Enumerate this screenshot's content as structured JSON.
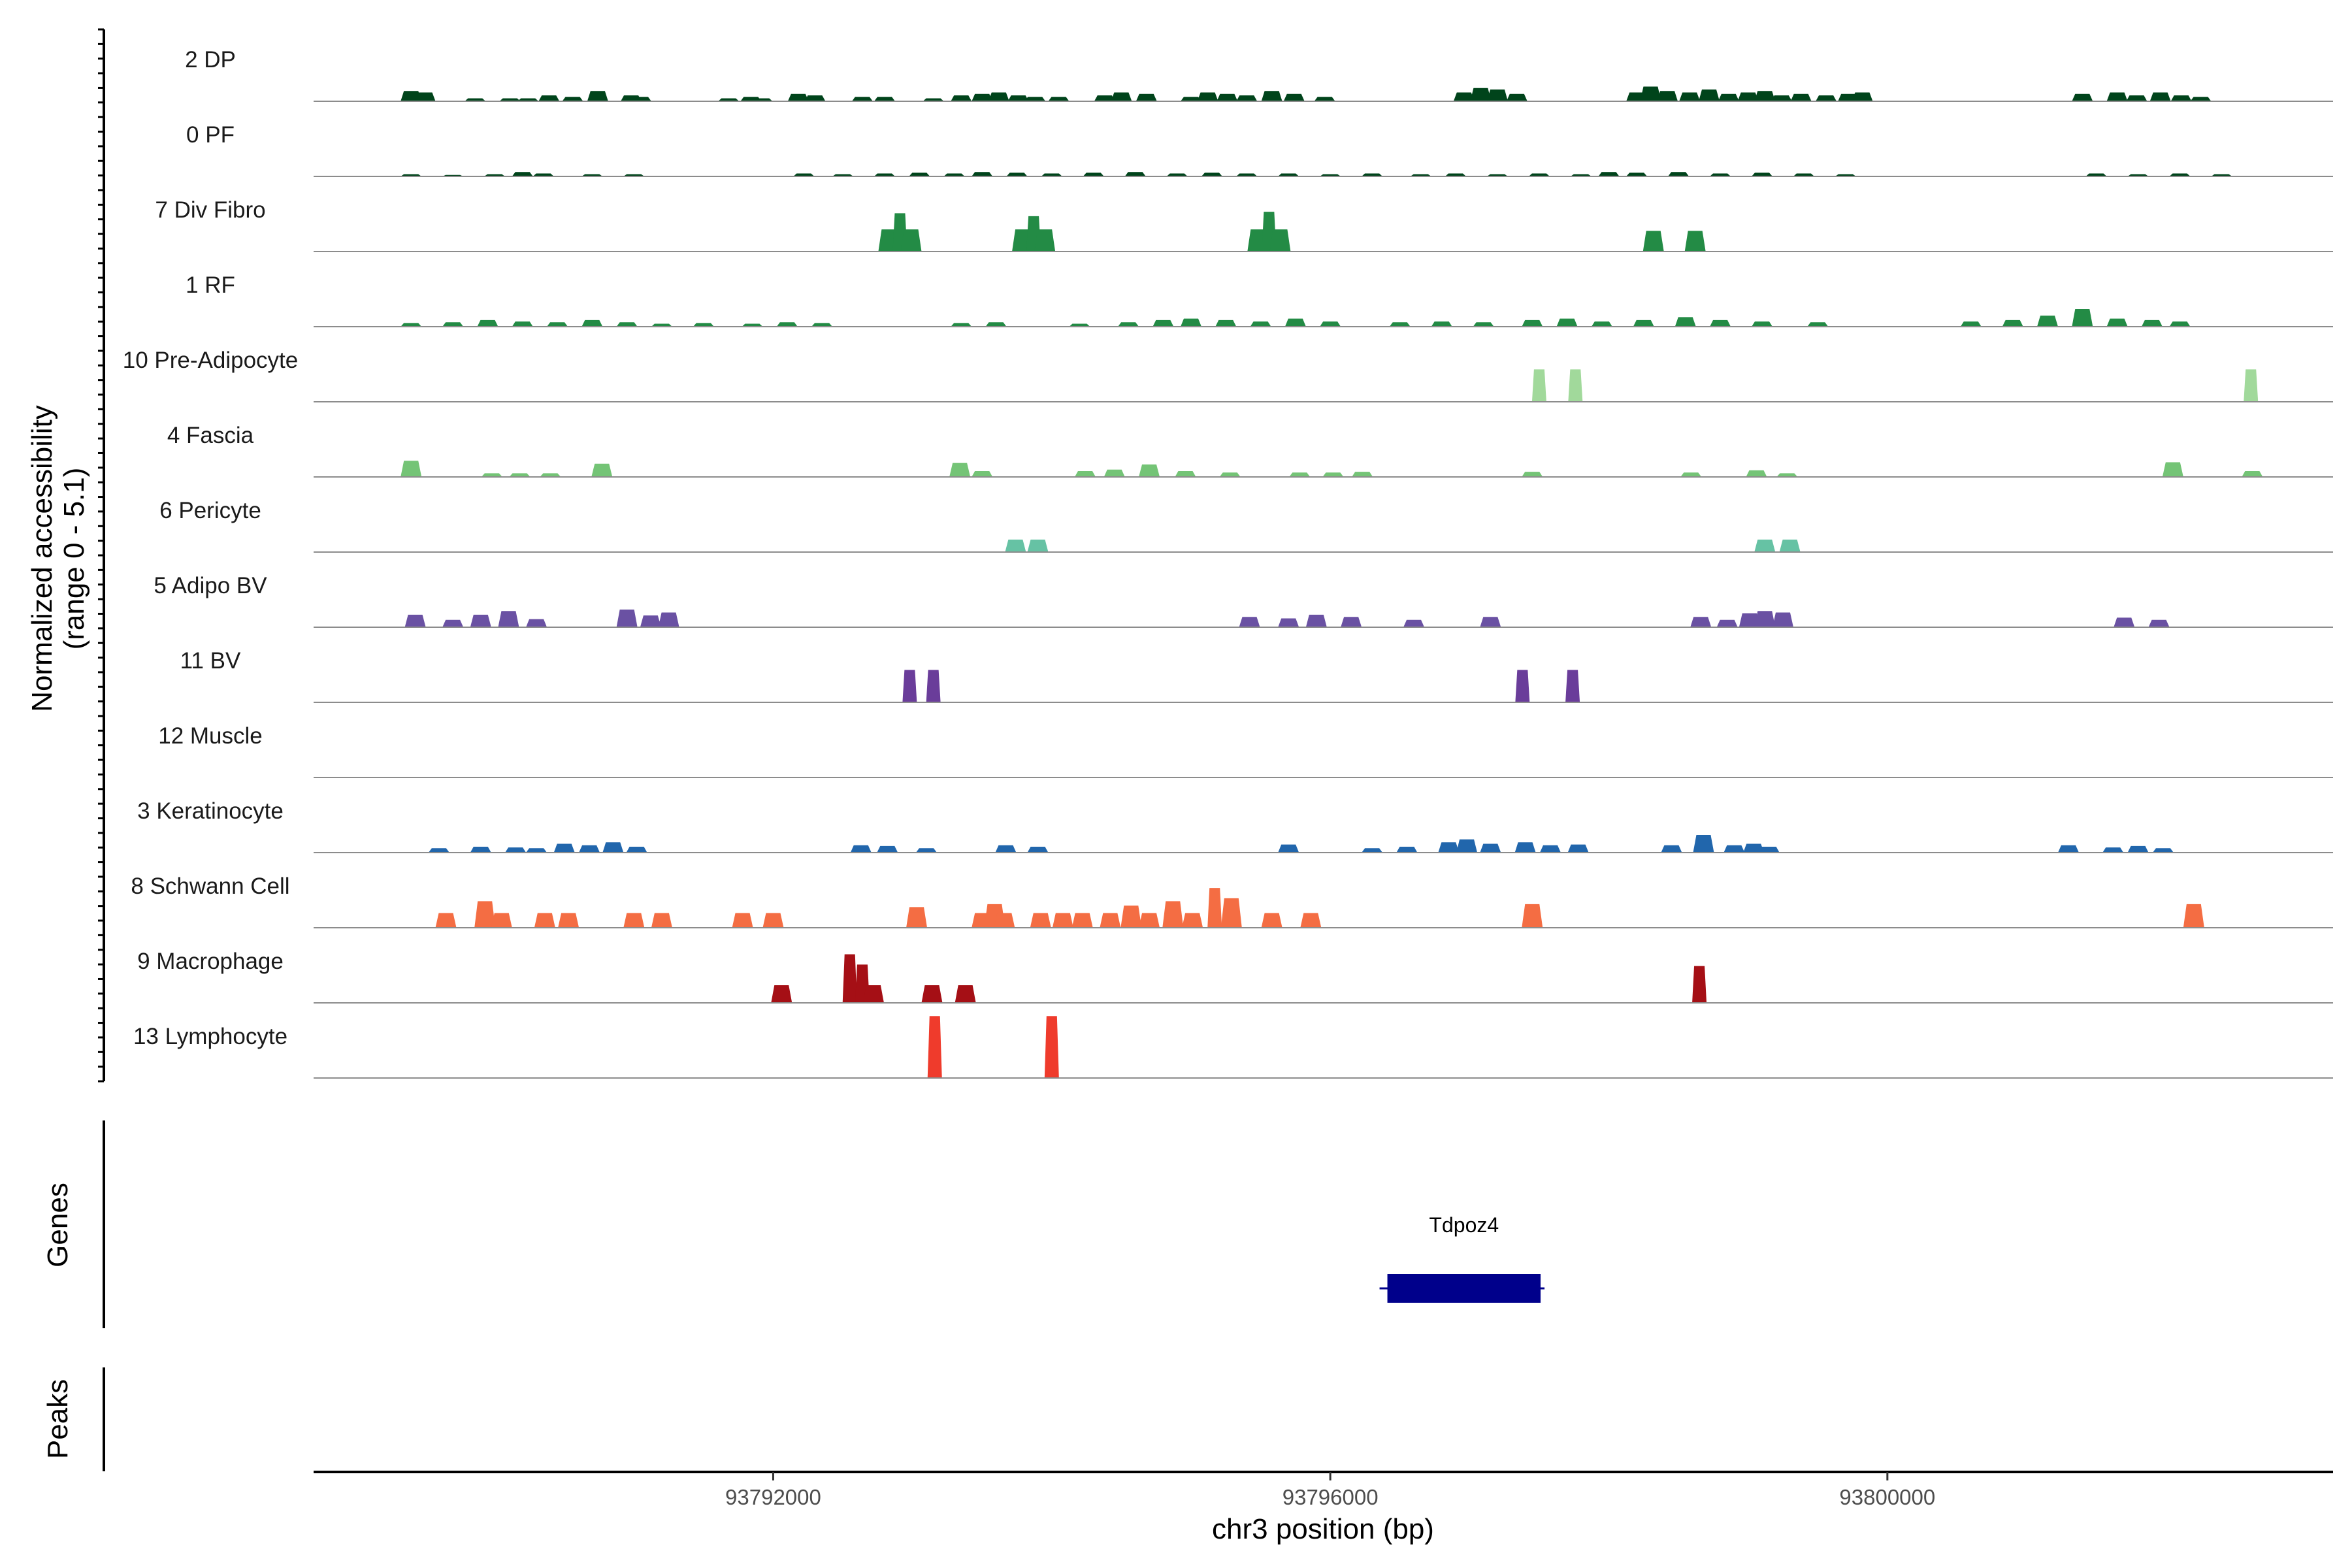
{
  "chart_data": {
    "type": "area",
    "chromosome": "chr3",
    "x_range": [
      93788700,
      93803200
    ],
    "y_range": [
      0,
      5.1
    ],
    "grid": false,
    "legend": "none",
    "ylabel_line1": "Normalized accessibility",
    "ylabel_line2": "(range 0 - 5.1)",
    "xlabel": "chr3 position (bp)",
    "x_ticks": [
      {
        "value": 93792000,
        "label": "93792000"
      },
      {
        "value": 93796000,
        "label": "93796000"
      },
      {
        "value": 93800000,
        "label": "93800000"
      }
    ],
    "tracks": [
      {
        "name": "2 DP",
        "color": "#00441b",
        "peaks": [
          [
            93789400,
            0.7
          ],
          [
            93789500,
            0.6
          ],
          [
            93789860,
            0.2
          ],
          [
            93790110,
            0.2
          ],
          [
            93790240,
            0.2
          ],
          [
            93790390,
            0.4
          ],
          [
            93790560,
            0.3
          ],
          [
            93790740,
            0.7
          ],
          [
            93790980,
            0.4
          ],
          [
            93791050,
            0.3
          ],
          [
            93791680,
            0.2
          ],
          [
            93791840,
            0.3
          ],
          [
            93791920,
            0.2
          ],
          [
            93792180,
            0.5
          ],
          [
            93792300,
            0.4
          ],
          [
            93792640,
            0.3
          ],
          [
            93792800,
            0.3
          ],
          [
            93793150,
            0.2
          ],
          [
            93793350,
            0.4
          ],
          [
            93793500,
            0.5
          ],
          [
            93793620,
            0.6
          ],
          [
            93793760,
            0.4
          ],
          [
            93793880,
            0.3
          ],
          [
            93794050,
            0.3
          ],
          [
            93794380,
            0.4
          ],
          [
            93794500,
            0.6
          ],
          [
            93794680,
            0.5
          ],
          [
            93795000,
            0.3
          ],
          [
            93795120,
            0.6
          ],
          [
            93795260,
            0.5
          ],
          [
            93795400,
            0.4
          ],
          [
            93795580,
            0.7
          ],
          [
            93795740,
            0.5
          ],
          [
            93795960,
            0.3
          ],
          [
            93796960,
            0.6
          ],
          [
            93797080,
            0.9
          ],
          [
            93797200,
            0.8
          ],
          [
            93797340,
            0.5
          ],
          [
            93798200,
            0.6
          ],
          [
            93798300,
            1.0
          ],
          [
            93798420,
            0.7
          ],
          [
            93798580,
            0.6
          ],
          [
            93798720,
            0.8
          ],
          [
            93798860,
            0.5
          ],
          [
            93799000,
            0.6
          ],
          [
            93799120,
            0.7
          ],
          [
            93799240,
            0.4
          ],
          [
            93799380,
            0.5
          ],
          [
            93799560,
            0.4
          ],
          [
            93799720,
            0.5
          ],
          [
            93799820,
            0.6
          ],
          [
            93801400,
            0.5
          ],
          [
            93801650,
            0.6
          ],
          [
            93801790,
            0.4
          ],
          [
            93801960,
            0.6
          ],
          [
            93802110,
            0.4
          ],
          [
            93802250,
            0.3
          ]
        ]
      },
      {
        "name": "0 PF",
        "color": "#00441b",
        "peaks": [
          [
            93789400,
            0.15
          ],
          [
            93789700,
            0.1
          ],
          [
            93790000,
            0.15
          ],
          [
            93790200,
            0.3
          ],
          [
            93790350,
            0.2
          ],
          [
            93790700,
            0.15
          ],
          [
            93791000,
            0.15
          ],
          [
            93792220,
            0.2
          ],
          [
            93792500,
            0.15
          ],
          [
            93792800,
            0.2
          ],
          [
            93793050,
            0.25
          ],
          [
            93793300,
            0.2
          ],
          [
            93793500,
            0.3
          ],
          [
            93793750,
            0.25
          ],
          [
            93794000,
            0.2
          ],
          [
            93794300,
            0.25
          ],
          [
            93794600,
            0.3
          ],
          [
            93794900,
            0.2
          ],
          [
            93795150,
            0.25
          ],
          [
            93795400,
            0.2
          ],
          [
            93795700,
            0.2
          ],
          [
            93796000,
            0.15
          ],
          [
            93796300,
            0.2
          ],
          [
            93796650,
            0.15
          ],
          [
            93796900,
            0.2
          ],
          [
            93797200,
            0.15
          ],
          [
            93797500,
            0.2
          ],
          [
            93797800,
            0.15
          ],
          [
            93798000,
            0.3
          ],
          [
            93798200,
            0.25
          ],
          [
            93798500,
            0.3
          ],
          [
            93798800,
            0.2
          ],
          [
            93799100,
            0.25
          ],
          [
            93799400,
            0.2
          ],
          [
            93799700,
            0.15
          ],
          [
            93801500,
            0.2
          ],
          [
            93801800,
            0.15
          ],
          [
            93802100,
            0.2
          ],
          [
            93802400,
            0.15
          ]
        ]
      },
      {
        "name": "7 Div Fibro",
        "color": "#238b45",
        "peaks": [
          [
            93792830,
            1.5
          ],
          [
            93792910,
            2.6
          ],
          [
            93792990,
            1.5
          ],
          [
            93793790,
            1.5
          ],
          [
            93793870,
            2.4
          ],
          [
            93793950,
            1.5
          ],
          [
            93795480,
            1.5
          ],
          [
            93795560,
            2.7
          ],
          [
            93795640,
            1.5
          ],
          [
            93798320,
            1.4
          ],
          [
            93798620,
            1.4
          ]
        ]
      },
      {
        "name": "1 RF",
        "color": "#238b45",
        "peaks": [
          [
            93789400,
            0.25
          ],
          [
            93789700,
            0.3
          ],
          [
            93789950,
            0.45
          ],
          [
            93790200,
            0.35
          ],
          [
            93790450,
            0.3
          ],
          [
            93790700,
            0.45
          ],
          [
            93790950,
            0.3
          ],
          [
            93791200,
            0.2
          ],
          [
            93791500,
            0.25
          ],
          [
            93791850,
            0.2
          ],
          [
            93792100,
            0.3
          ],
          [
            93792350,
            0.25
          ],
          [
            93793350,
            0.25
          ],
          [
            93793600,
            0.3
          ],
          [
            93794200,
            0.2
          ],
          [
            93794550,
            0.3
          ],
          [
            93794800,
            0.45
          ],
          [
            93795000,
            0.55
          ],
          [
            93795250,
            0.45
          ],
          [
            93795500,
            0.35
          ],
          [
            93795750,
            0.55
          ],
          [
            93796000,
            0.35
          ],
          [
            93796500,
            0.3
          ],
          [
            93796800,
            0.35
          ],
          [
            93797100,
            0.3
          ],
          [
            93797450,
            0.45
          ],
          [
            93797700,
            0.55
          ],
          [
            93797950,
            0.35
          ],
          [
            93798250,
            0.45
          ],
          [
            93798550,
            0.65
          ],
          [
            93798800,
            0.45
          ],
          [
            93799100,
            0.35
          ],
          [
            93799500,
            0.3
          ],
          [
            93800600,
            0.35
          ],
          [
            93800900,
            0.45
          ],
          [
            93801150,
            0.75
          ],
          [
            93801400,
            1.2
          ],
          [
            93801650,
            0.55
          ],
          [
            93801900,
            0.45
          ],
          [
            93802100,
            0.35
          ]
        ]
      },
      {
        "name": "10 Pre-Adipocyte",
        "color": "#a1d99b",
        "peaks": [
          [
            93797500,
            2.2
          ],
          [
            93797760,
            2.2
          ],
          [
            93802610,
            2.2
          ]
        ]
      },
      {
        "name": "4 Fascia",
        "color": "#74c476",
        "peaks": [
          [
            93789400,
            1.1
          ],
          [
            93789980,
            0.25
          ],
          [
            93790180,
            0.25
          ],
          [
            93790400,
            0.25
          ],
          [
            93790770,
            0.9
          ],
          [
            93793340,
            0.95
          ],
          [
            93793500,
            0.4
          ],
          [
            93794240,
            0.4
          ],
          [
            93794450,
            0.5
          ],
          [
            93794700,
            0.85
          ],
          [
            93794960,
            0.4
          ],
          [
            93795280,
            0.3
          ],
          [
            93795780,
            0.3
          ],
          [
            93796020,
            0.3
          ],
          [
            93796230,
            0.35
          ],
          [
            93797450,
            0.35
          ],
          [
            93798590,
            0.3
          ],
          [
            93799060,
            0.45
          ],
          [
            93799280,
            0.25
          ],
          [
            93802050,
            1.0
          ],
          [
            93802620,
            0.4
          ]
        ]
      },
      {
        "name": "6 Pericyte",
        "color": "#66c2a4",
        "peaks": [
          [
            93793740,
            0.85
          ],
          [
            93793900,
            0.85
          ],
          [
            93799120,
            0.85
          ],
          [
            93799300,
            0.85
          ]
        ]
      },
      {
        "name": "5 Adipo BV",
        "color": "#6a51a3",
        "peaks": [
          [
            93789430,
            0.85
          ],
          [
            93789700,
            0.5
          ],
          [
            93789900,
            0.85
          ],
          [
            93790100,
            1.1
          ],
          [
            93790300,
            0.55
          ],
          [
            93790950,
            1.2
          ],
          [
            93791120,
            0.8
          ],
          [
            93791250,
            1.0
          ],
          [
            93795420,
            0.7
          ],
          [
            93795700,
            0.6
          ],
          [
            93795900,
            0.85
          ],
          [
            93796150,
            0.7
          ],
          [
            93796600,
            0.5
          ],
          [
            93797150,
            0.7
          ],
          [
            93798660,
            0.7
          ],
          [
            93798850,
            0.5
          ],
          [
            93799010,
            0.95
          ],
          [
            93799120,
            1.1
          ],
          [
            93799250,
            1.0
          ],
          [
            93801700,
            0.65
          ],
          [
            93801950,
            0.5
          ]
        ]
      },
      {
        "name": "11 BV",
        "color": "#6a3d9a",
        "peaks": [
          [
            93792980,
            2.2
          ],
          [
            93793150,
            2.2
          ],
          [
            93797380,
            2.2
          ],
          [
            93797740,
            2.2
          ]
        ]
      },
      {
        "name": "12 Muscle",
        "color": "#999999",
        "peaks": []
      },
      {
        "name": "3 Keratinocyte",
        "color": "#2166ac",
        "peaks": [
          [
            93789600,
            0.3
          ],
          [
            93789900,
            0.4
          ],
          [
            93790150,
            0.35
          ],
          [
            93790300,
            0.3
          ],
          [
            93790500,
            0.6
          ],
          [
            93790680,
            0.5
          ],
          [
            93790850,
            0.7
          ],
          [
            93791020,
            0.4
          ],
          [
            93792630,
            0.5
          ],
          [
            93792820,
            0.45
          ],
          [
            93793100,
            0.3
          ],
          [
            93793670,
            0.5
          ],
          [
            93793900,
            0.4
          ],
          [
            93795700,
            0.55
          ],
          [
            93796300,
            0.3
          ],
          [
            93796550,
            0.4
          ],
          [
            93796850,
            0.7
          ],
          [
            93796980,
            0.9
          ],
          [
            93797150,
            0.6
          ],
          [
            93797400,
            0.7
          ],
          [
            93797580,
            0.5
          ],
          [
            93797780,
            0.55
          ],
          [
            93798450,
            0.5
          ],
          [
            93798680,
            1.2
          ],
          [
            93798900,
            0.5
          ],
          [
            93799040,
            0.6
          ],
          [
            93799150,
            0.4
          ],
          [
            93801300,
            0.5
          ],
          [
            93801620,
            0.35
          ],
          [
            93801800,
            0.45
          ],
          [
            93801980,
            0.3
          ]
        ]
      },
      {
        "name": "8 Schwann Cell",
        "color": "#f46d43",
        "peaks": [
          [
            93789650,
            1.0
          ],
          [
            93789930,
            1.8
          ],
          [
            93790050,
            1.0
          ],
          [
            93790360,
            1.0
          ],
          [
            93790530,
            1.0
          ],
          [
            93791000,
            1.0
          ],
          [
            93791200,
            1.0
          ],
          [
            93791780,
            1.0
          ],
          [
            93792000,
            1.0
          ],
          [
            93793030,
            1.4
          ],
          [
            93793500,
            1.0
          ],
          [
            93793590,
            1.6
          ],
          [
            93793660,
            1.0
          ],
          [
            93793920,
            1.0
          ],
          [
            93794080,
            1.0
          ],
          [
            93794220,
            1.0
          ],
          [
            93794420,
            1.0
          ],
          [
            93794570,
            1.5
          ],
          [
            93794700,
            1.0
          ],
          [
            93794870,
            1.8
          ],
          [
            93795010,
            1.0
          ],
          [
            93795170,
            2.7
          ],
          [
            93795290,
            2.0
          ],
          [
            93795580,
            1.0
          ],
          [
            93795860,
            1.0
          ],
          [
            93797450,
            1.6
          ],
          [
            93802200,
            1.6
          ]
        ]
      },
      {
        "name": "9 Macrophage",
        "color": "#a50f15",
        "peaks": [
          [
            93792060,
            1.2
          ],
          [
            93792550,
            3.3
          ],
          [
            93792640,
            2.6
          ],
          [
            93792720,
            1.2
          ],
          [
            93793140,
            1.2
          ],
          [
            93793380,
            1.2
          ],
          [
            93798650,
            2.5
          ]
        ]
      },
      {
        "name": "13 Lymphocyte",
        "color": "#ef3b2c",
        "peaks": [
          [
            93793160,
            4.2
          ],
          [
            93794000,
            4.2
          ]
        ]
      }
    ],
    "genes": [
      {
        "name": "Tdpoz4",
        "start": 93796410,
        "end": 93797510,
        "color": "#00008b"
      }
    ],
    "peaks_track": []
  }
}
